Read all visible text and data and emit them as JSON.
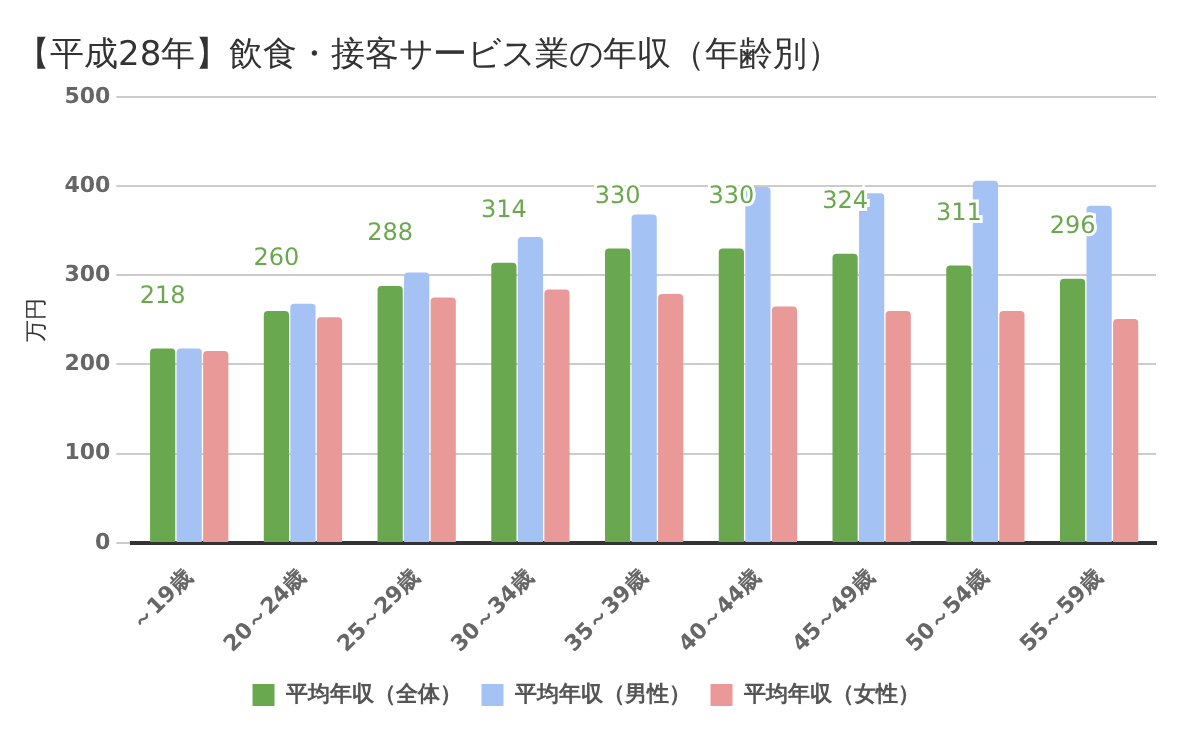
{
  "chart_data": {
    "type": "bar",
    "title": "【平成28年】飲食・接客サービス業の年収（年齢別）",
    "ylabel": "万円",
    "categories": [
      "～19歳",
      "20～24歳",
      "25～29歳",
      "30～34歳",
      "35～39歳",
      "40～44歳",
      "45～49歳",
      "50～54歳",
      "55～59歳"
    ],
    "series": [
      {
        "name": "平均年収（全体）",
        "color": "#6aa84f",
        "values": [
          218,
          260,
          288,
          314,
          330,
          330,
          324,
          311,
          296
        ],
        "value_labels": [
          "218",
          "260",
          "288",
          "314",
          "330",
          "330",
          "324",
          "311",
          "296"
        ]
      },
      {
        "name": "平均年収（男性）",
        "color": "#a4c2f4",
        "values": [
          218,
          268,
          303,
          343,
          368,
          399,
          392,
          406,
          378
        ]
      },
      {
        "name": "平均年収（女性）",
        "color": "#ea9999",
        "values": [
          215,
          253,
          275,
          284,
          279,
          265,
          260,
          260,
          251
        ]
      }
    ],
    "ylim": [
      0,
      500
    ],
    "yticks": [
      0,
      100,
      200,
      300,
      400,
      500
    ],
    "grid": "y",
    "legend": "bottom"
  }
}
